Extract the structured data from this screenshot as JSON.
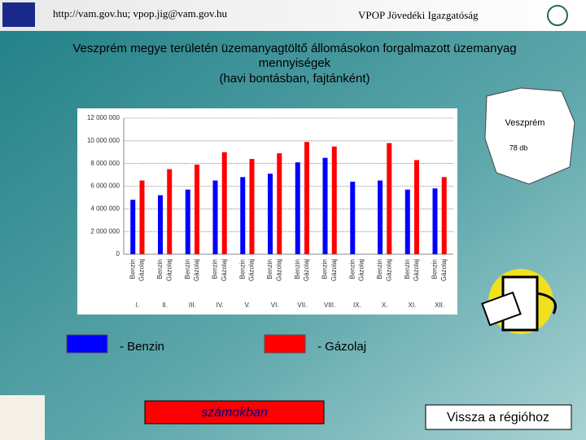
{
  "header": {
    "link": "http://vam.gov.hu; vpop.jig@vam.gov.hu",
    "org": "VPOP Jövedéki Igazgatóság"
  },
  "chart_data": {
    "type": "bar",
    "title": [
      "Veszprém megye területén üzemanyagtöltő állomásokon forgalmazott üzemanyag",
      "mennyiségek",
      "(havi bontásban, fajtánként)"
    ],
    "categories": [
      "I.",
      "II.",
      "III.",
      "IV.",
      "V.",
      "VI.",
      "VII.",
      "VIII.",
      "IX.",
      "X.",
      "XI.",
      "XII."
    ],
    "series": [
      {
        "name": "Benzin",
        "color": "#0000ff",
        "values": [
          4800000,
          5200000,
          5700000,
          6500000,
          6800000,
          7100000,
          8100000,
          8500000,
          6400000,
          6500000,
          5700000,
          5800000
        ]
      },
      {
        "name": "Gázolaj",
        "color": "#ff0000",
        "values": [
          6500000,
          7500000,
          7900000,
          9000000,
          8400000,
          8900000,
          9900000,
          9500000,
          null,
          9800000,
          8300000,
          6800000
        ]
      }
    ],
    "legend_labels": [
      "- Benzin",
      "- Gázolaj"
    ],
    "ylim": [
      0,
      12000000
    ],
    "yticks": [
      0,
      {
        "value": 2000000,
        "label": "2 000 000"
      },
      {
        "value": 4000000,
        "label": "4 000 000"
      },
      {
        "value": 6000000,
        "label": "6 000 000"
      },
      {
        "value": 8000000,
        "label": "8 000 000"
      },
      {
        "value": 10000000,
        "label": "10 000 000"
      },
      {
        "value": 12000000,
        "label": "12 000 000"
      }
    ],
    "grid": true
  },
  "map": {
    "name": "Veszprém",
    "count": "78 db"
  },
  "buttons": {
    "numbers": "számokban",
    "back": "Vissza a régióhoz"
  }
}
